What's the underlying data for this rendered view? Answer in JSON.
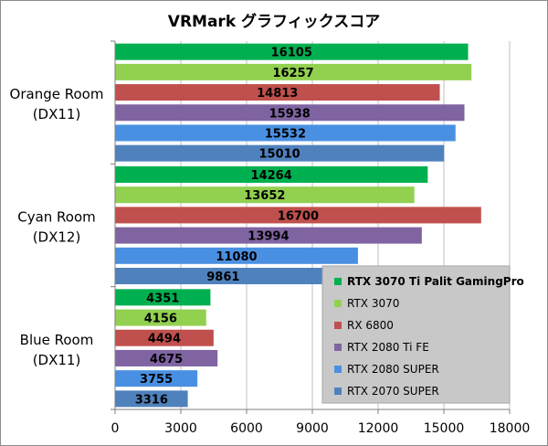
{
  "chart_data": {
    "type": "bar",
    "orientation": "horizontal",
    "title": "VRMark グラフィックスコア",
    "categories": [
      [
        "Orange Room",
        "(DX11)"
      ],
      [
        "Cyan Room",
        "(DX12)"
      ],
      [
        "Blue Room",
        "(DX11)"
      ]
    ],
    "series": [
      {
        "name": "RTX 3070 Ti Palit GamingPro",
        "color": "#00b050",
        "bold": true,
        "values": [
          16105,
          14264,
          4351
        ]
      },
      {
        "name": "RTX 3070",
        "color": "#92d050",
        "bold": false,
        "values": [
          16257,
          13652,
          4156
        ]
      },
      {
        "name": "RX 6800",
        "color": "#c0504d",
        "bold": false,
        "values": [
          14813,
          16700,
          4494
        ]
      },
      {
        "name": "RTX 2080 Ti FE",
        "color": "#8064a2",
        "bold": false,
        "values": [
          15938,
          13994,
          4675
        ]
      },
      {
        "name": "RTX 2080 SUPER",
        "color": "#4a90e2",
        "bold": false,
        "values": [
          15532,
          11080,
          3755
        ]
      },
      {
        "name": "RTX 2070 SUPER",
        "color": "#4f81bd",
        "bold": false,
        "values": [
          15010,
          9861,
          3316
        ]
      }
    ],
    "xlim": [
      0,
      18000
    ],
    "xticks": [
      0,
      3000,
      6000,
      9000,
      12000,
      15000,
      18000
    ],
    "grid": true,
    "legend": "bottom-right"
  }
}
